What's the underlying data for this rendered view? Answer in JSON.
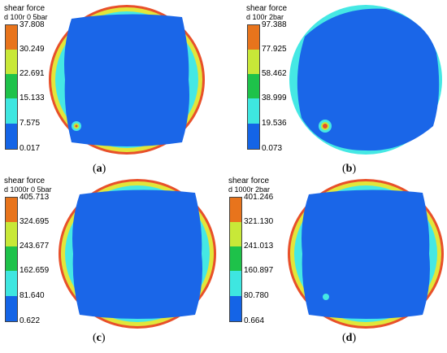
{
  "panels": [
    {
      "id": "a",
      "legend_title": "shear force",
      "legend_subtitle": "d 100r 0 5bar",
      "ticks": [
        "37.808",
        "30.249",
        "22.691",
        "15.133",
        "7.575",
        "0.017"
      ],
      "caption_open": "(",
      "caption_letter": "a",
      "caption_close": ")",
      "hotspot": "bottom-left",
      "rim_colors": "red-yellow-cyan"
    },
    {
      "id": "b",
      "legend_title": "shear force",
      "legend_subtitle": "d 100r 2bar",
      "ticks": [
        "97.388",
        "77.925",
        "58.462",
        "38.999",
        "19.536",
        "0.073"
      ],
      "caption_open": "(",
      "caption_letter": "b",
      "caption_close": ")",
      "hotspot": "bottom-left-strong",
      "rim_colors": "cyan"
    },
    {
      "id": "c",
      "legend_title": "shear force",
      "legend_subtitle": "d 1000r 0 5bar",
      "ticks": [
        "405.713",
        "324.695",
        "243.677",
        "162.659",
        "81.640",
        "0.622"
      ],
      "caption_open": "(",
      "caption_letter": "c",
      "caption_close": ")",
      "hotspot": "none",
      "rim_colors": "red-yellow-cyan"
    },
    {
      "id": "d",
      "legend_title": "shear force",
      "legend_subtitle": "d 1000r 2bar",
      "ticks": [
        "401.246",
        "321.130",
        "241.013",
        "160.897",
        "80.780",
        "0.664"
      ],
      "caption_open": "(",
      "caption_letter": "d",
      "caption_close": ")",
      "hotspot": "faint",
      "rim_colors": "red-yellow-cyan"
    }
  ],
  "colors": {
    "band_1": "#e8741c",
    "band_2": "#c8e838",
    "band_3": "#1ec24a",
    "band_4": "#3ee6e0",
    "band_5": "#1464e6",
    "disk_blue": "#1a66e8",
    "rim_cyan": "#45e8e4",
    "rim_yellow": "#e2e63a",
    "rim_red": "#e8502a"
  }
}
